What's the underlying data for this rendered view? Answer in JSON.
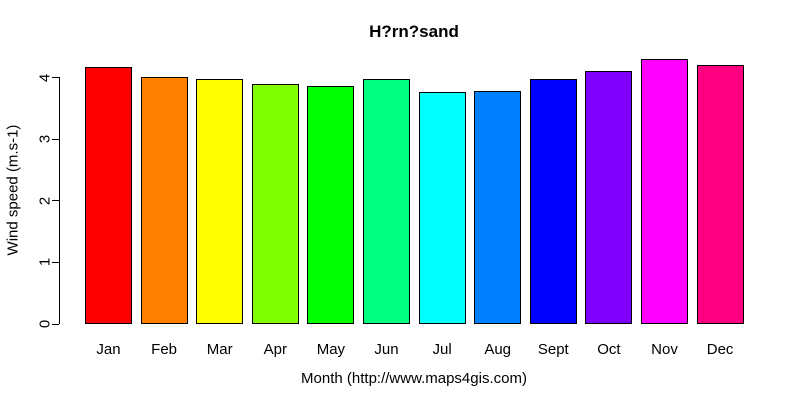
{
  "chart_data": {
    "type": "bar",
    "title": "H?rn?sand",
    "xlabel": "Month (http://www.maps4gis.com)",
    "ylabel": "Wind speed (m.s-1)",
    "categories": [
      "Jan",
      "Feb",
      "Mar",
      "Apr",
      "May",
      "Jun",
      "Jul",
      "Aug",
      "Sept",
      "Oct",
      "Nov",
      "Dec"
    ],
    "values": [
      4.18,
      4.01,
      3.98,
      3.9,
      3.87,
      3.97,
      3.77,
      3.79,
      3.98,
      4.11,
      4.3,
      4.21
    ],
    "bar_colors": [
      "#FF0000",
      "#FF8000",
      "#FFFF00",
      "#80FF00",
      "#00FF00",
      "#00FF80",
      "#00FFFF",
      "#0080FF",
      "#0000FF",
      "#8000FF",
      "#FF00FF",
      "#FF0080"
    ],
    "bar_border_color": "#000000",
    "yticks": [
      "0",
      "1",
      "2",
      "3",
      "4"
    ],
    "ylim": [
      0,
      4.3
    ],
    "grid": false,
    "legend": null,
    "background": "#FFFFFF",
    "text_color": "#000000"
  }
}
